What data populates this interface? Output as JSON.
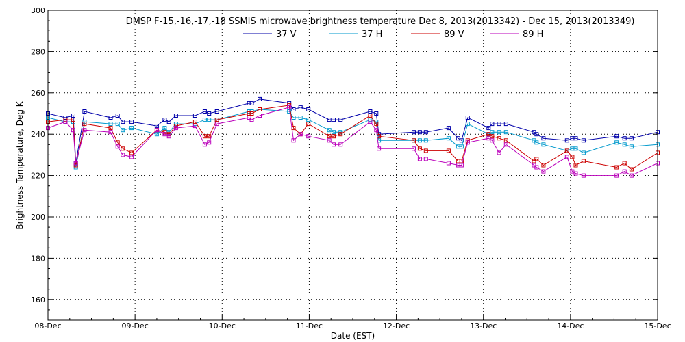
{
  "chart_data": {
    "type": "line",
    "title": "DMSP F-15,-16,-17,-18 SSMIS microwave brightness temperature Dec  8, 2013(2013342) - Dec 15, 2013(2013349)",
    "xlabel": "Date (EST)",
    "ylabel": "Brightness Temperature, Deg K",
    "xlim": [
      0,
      7
    ],
    "ylim": [
      150,
      300
    ],
    "yticks": [
      160,
      180,
      200,
      220,
      240,
      260,
      280,
      300
    ],
    "xticks": [
      0,
      1,
      2,
      3,
      4,
      5,
      6,
      7
    ],
    "xtick_labels": [
      "08-Dec",
      "09-Dec",
      "10-Dec",
      "11-Dec",
      "12-Dec",
      "13-Dec",
      "14-Dec",
      "15-Dec"
    ],
    "grid": true,
    "legend_position": "top-center",
    "series": [
      {
        "name": "37 V",
        "color": "#0000aa",
        "x": [
          0.0,
          0.2,
          0.29,
          0.32,
          0.42,
          0.72,
          0.8,
          0.86,
          0.96,
          1.25,
          1.34,
          1.39,
          1.47,
          1.69,
          1.8,
          1.85,
          1.94,
          2.31,
          2.34,
          2.43,
          2.77,
          2.82,
          2.9,
          2.99,
          3.23,
          3.28,
          3.36,
          3.7,
          3.77,
          3.8,
          4.2,
          4.27,
          4.34,
          4.6,
          4.71,
          4.75,
          4.82,
          5.06,
          5.1,
          5.18,
          5.26,
          5.58,
          5.61,
          5.69,
          5.96,
          6.02,
          6.06,
          6.15,
          6.53,
          6.62,
          6.7,
          7.0
        ],
        "y": [
          250,
          248,
          249,
          226,
          251,
          248,
          249,
          246,
          246,
          244,
          247,
          246,
          249,
          249,
          251,
          250,
          251,
          255,
          255,
          257,
          255,
          252,
          253,
          252,
          247,
          247,
          247,
          251,
          250,
          240,
          241,
          241,
          241,
          243,
          238,
          237,
          248,
          243,
          245,
          245,
          245,
          241,
          240,
          238,
          237,
          238,
          238,
          237,
          239,
          238,
          238,
          241
        ]
      },
      {
        "name": "37 H",
        "color": "#0099cc",
        "x": [
          0.0,
          0.2,
          0.29,
          0.32,
          0.42,
          0.72,
          0.8,
          0.86,
          0.96,
          1.25,
          1.34,
          1.39,
          1.47,
          1.69,
          1.8,
          1.85,
          1.94,
          2.31,
          2.34,
          2.43,
          2.77,
          2.82,
          2.9,
          2.99,
          3.23,
          3.28,
          3.36,
          3.7,
          3.77,
          3.8,
          4.2,
          4.27,
          4.34,
          4.6,
          4.71,
          4.75,
          4.82,
          5.06,
          5.1,
          5.18,
          5.26,
          5.58,
          5.61,
          5.69,
          5.96,
          6.02,
          6.06,
          6.15,
          6.53,
          6.62,
          6.7,
          7.0
        ],
        "y": [
          248,
          246,
          246,
          224,
          246,
          245,
          245,
          242,
          243,
          240,
          243,
          241,
          245,
          245,
          247,
          247,
          247,
          251,
          251,
          252,
          251,
          248,
          248,
          247,
          242,
          241,
          241,
          247,
          246,
          237,
          237,
          237,
          237,
          238,
          234,
          234,
          245,
          240,
          241,
          241,
          241,
          237,
          236,
          235,
          232,
          233,
          233,
          231,
          236,
          235,
          234,
          235
        ]
      },
      {
        "name": "89 V",
        "color": "#cc0000",
        "x": [
          0.0,
          0.2,
          0.29,
          0.32,
          0.42,
          0.72,
          0.8,
          0.86,
          0.96,
          1.25,
          1.34,
          1.39,
          1.47,
          1.69,
          1.8,
          1.85,
          1.94,
          2.31,
          2.34,
          2.43,
          2.77,
          2.82,
          2.9,
          2.99,
          3.23,
          3.28,
          3.36,
          3.7,
          3.77,
          3.8,
          4.2,
          4.27,
          4.34,
          4.6,
          4.71,
          4.75,
          4.82,
          5.06,
          5.1,
          5.18,
          5.26,
          5.58,
          5.61,
          5.69,
          5.96,
          6.02,
          6.06,
          6.15,
          6.53,
          6.62,
          6.7,
          7.0
        ],
        "y": [
          246,
          247,
          247,
          225,
          245,
          243,
          236,
          233,
          231,
          242,
          241,
          240,
          244,
          246,
          239,
          239,
          247,
          250,
          250,
          252,
          254,
          243,
          240,
          245,
          239,
          239,
          240,
          249,
          245,
          239,
          237,
          233,
          232,
          232,
          227,
          227,
          237,
          240,
          239,
          238,
          237,
          227,
          228,
          225,
          232,
          229,
          225,
          227,
          224,
          226,
          223,
          231
        ]
      },
      {
        "name": "89 H",
        "color": "#bb00bb",
        "x": [
          0.0,
          0.2,
          0.29,
          0.32,
          0.42,
          0.72,
          0.8,
          0.86,
          0.96,
          1.25,
          1.34,
          1.39,
          1.47,
          1.69,
          1.8,
          1.85,
          1.94,
          2.31,
          2.34,
          2.43,
          2.77,
          2.82,
          2.9,
          2.99,
          3.23,
          3.28,
          3.36,
          3.7,
          3.77,
          3.8,
          4.2,
          4.27,
          4.34,
          4.6,
          4.71,
          4.75,
          4.82,
          5.06,
          5.1,
          5.18,
          5.26,
          5.58,
          5.61,
          5.69,
          5.96,
          6.02,
          6.06,
          6.15,
          6.53,
          6.62,
          6.7,
          7.0
        ],
        "y": [
          243,
          246,
          242,
          226,
          242,
          241,
          234,
          230,
          229,
          242,
          240,
          239,
          243,
          244,
          235,
          236,
          245,
          248,
          247,
          249,
          253,
          237,
          240,
          239,
          237,
          235,
          235,
          246,
          242,
          233,
          233,
          228,
          228,
          226,
          225,
          225,
          236,
          238,
          237,
          231,
          235,
          225,
          224,
          222,
          229,
          222,
          221,
          220,
          220,
          222,
          220,
          226
        ]
      }
    ]
  }
}
